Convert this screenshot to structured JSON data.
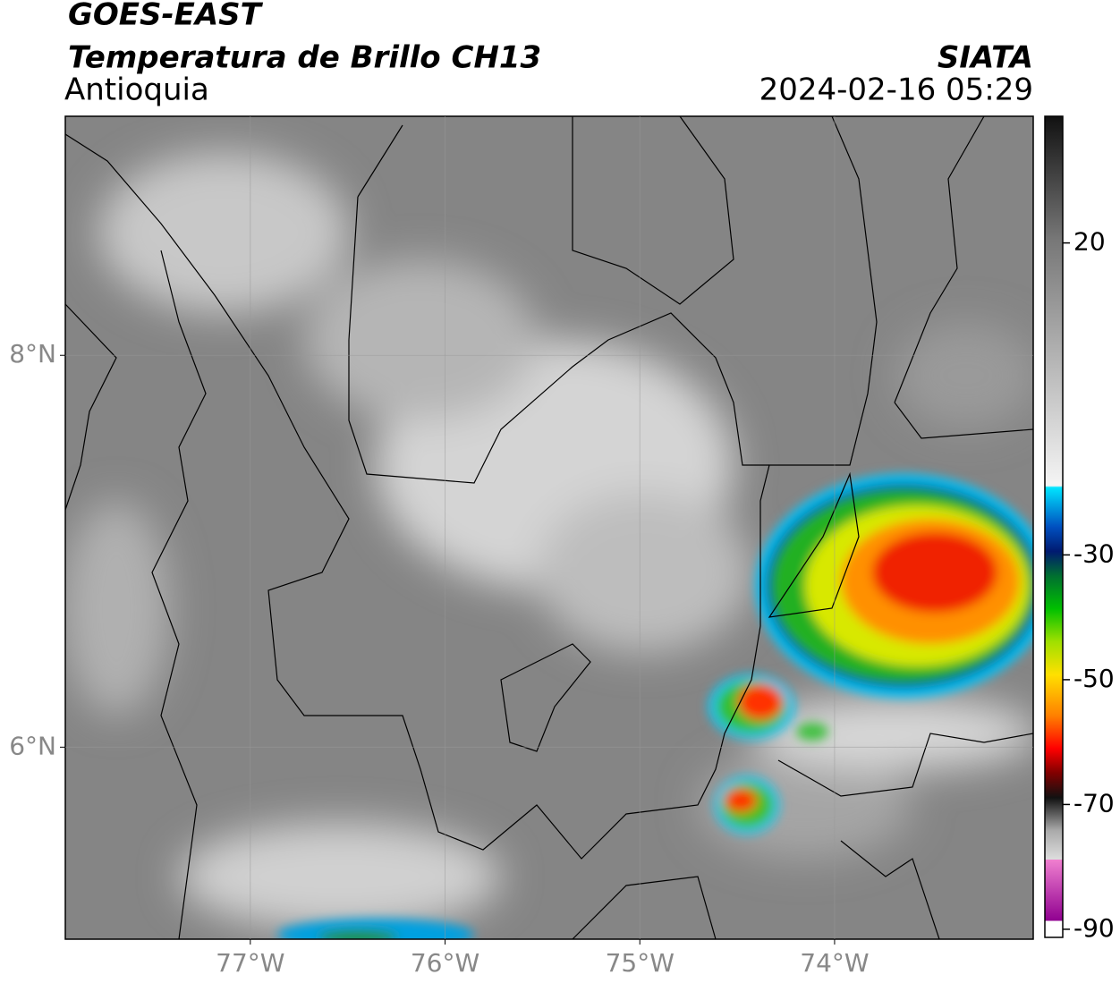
{
  "map": {
    "title": "GOES-EAST",
    "subtitle": "Temperatura de Brillo CH13",
    "region": "Antioquia",
    "source": "SIATA",
    "timestamp": "2024-02-16 05:29",
    "xlim": [
      -77.95,
      -72.98
    ],
    "ylim": [
      5.02,
      9.22
    ],
    "xticks": [
      {
        "value": -77,
        "label": "77°W"
      },
      {
        "value": -76,
        "label": "76°W"
      },
      {
        "value": -75,
        "label": "75°W"
      },
      {
        "value": -74,
        "label": "74°W"
      }
    ],
    "yticks": [
      {
        "value": 8,
        "label": "8°N"
      },
      {
        "value": 6,
        "label": "6°N"
      }
    ],
    "grid": true,
    "colorbar": {
      "lim": [
        -91.3,
        40.3
      ],
      "ticks": [
        20,
        -30,
        -50,
        -70,
        -90
      ]
    }
  }
}
